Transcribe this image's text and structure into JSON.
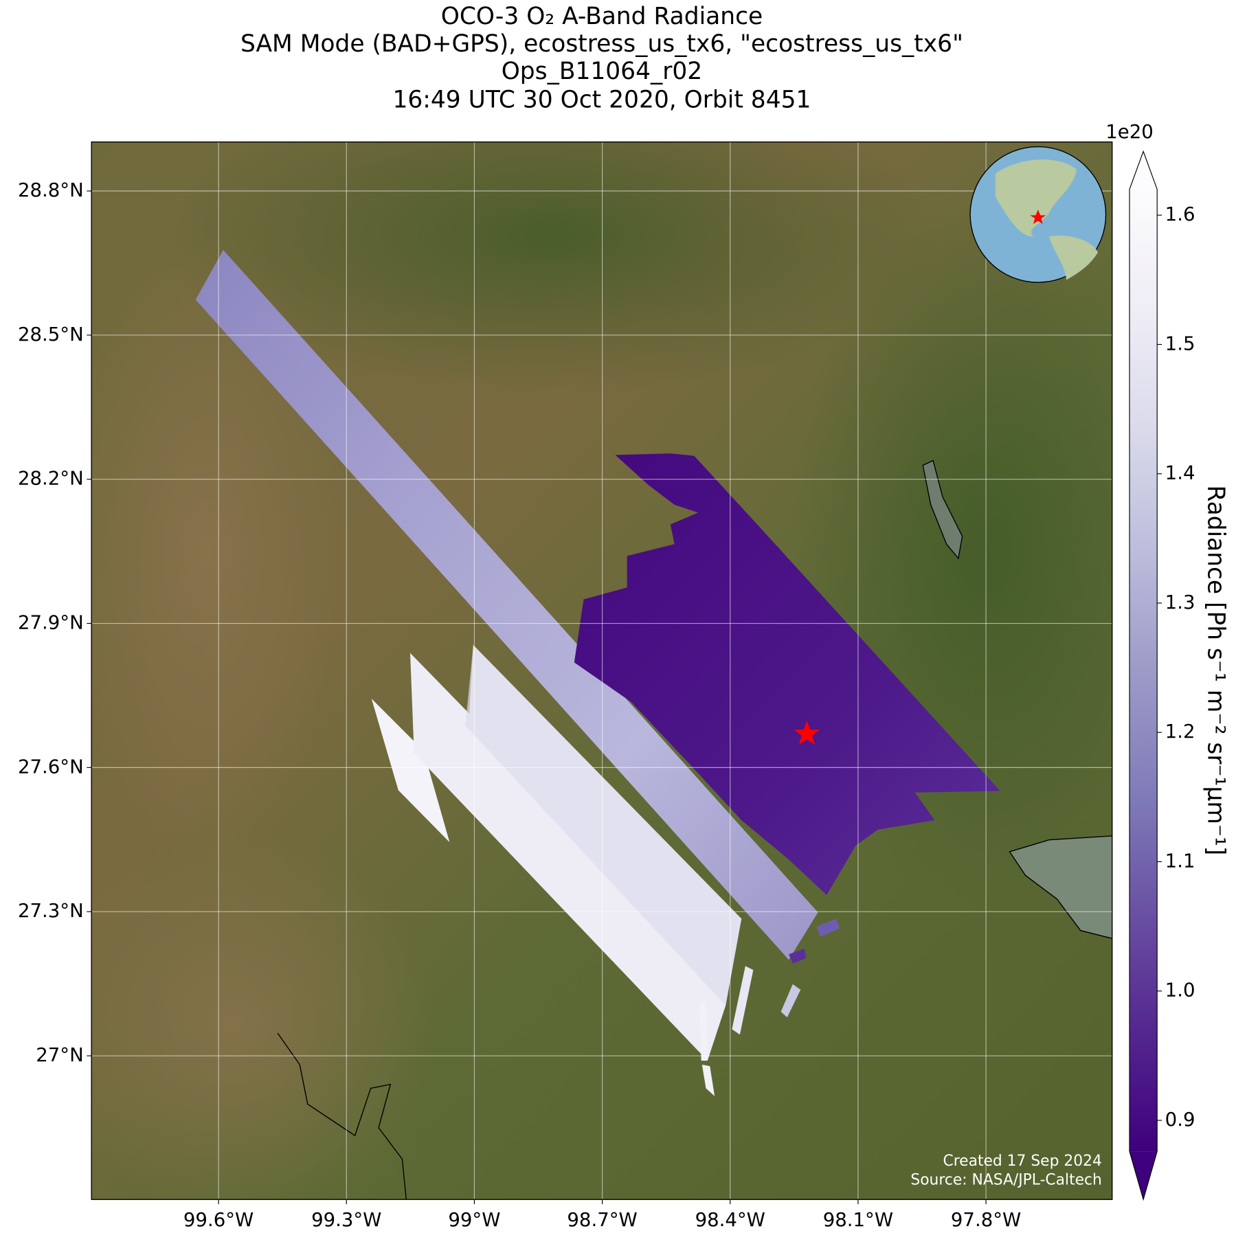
{
  "chart_data": {
    "type": "map",
    "title": [
      "OCO-3 O₂ A-Band Radiance",
      "SAM Mode (BAD+GPS), ecostress_us_tx6, \"ecostress_us_tx6\"",
      "Ops_B11064_r02",
      "16:49 UTC 30 Oct 2020, Orbit 8451"
    ],
    "xlim": [
      -99.898,
      -97.504
    ],
    "ylim": [
      26.701,
      28.902
    ],
    "xticks": [
      {
        "value": -99.6,
        "label": "99.6°W"
      },
      {
        "value": -99.3,
        "label": "99.3°W"
      },
      {
        "value": -99.0,
        "label": "99°W"
      },
      {
        "value": -98.7,
        "label": "98.7°W"
      },
      {
        "value": -98.4,
        "label": "98.4°W"
      },
      {
        "value": -98.1,
        "label": "98.1°W"
      },
      {
        "value": -97.8,
        "label": "97.8°W"
      }
    ],
    "yticks": [
      {
        "value": 28.8,
        "label": "28.8°N"
      },
      {
        "value": 28.5,
        "label": "28.5°N"
      },
      {
        "value": 28.2,
        "label": "28.2°N"
      },
      {
        "value": 27.9,
        "label": "27.9°N"
      },
      {
        "value": 27.6,
        "label": "27.6°N"
      },
      {
        "value": 27.3,
        "label": "27.3°N"
      },
      {
        "value": 27.0,
        "label": "27°N"
      }
    ],
    "grid": true,
    "target": {
      "lon": -98.22,
      "lat": 27.67,
      "color": "#ff0000"
    },
    "colorbar": {
      "label": "Radiance [Ph s⁻¹ m⁻² sr⁻¹μm⁻¹]",
      "offset_label": "1e20",
      "clim": [
        0.876,
        1.62
      ],
      "ticks": [
        0.9,
        {
          "value": 1,
          "label": "1.0"
        },
        1.1,
        1.2,
        1.3,
        1.4,
        1.5,
        1.6
      ],
      "colors": [
        "#3f007d",
        "#54278f",
        "#6a51a3",
        "#807dba",
        "#9e9ac8",
        "#bcbddc",
        "#dadaeb",
        "#efedf5",
        "#fcfbfd"
      ]
    },
    "credits": [
      "Created 17 Sep 2024",
      "Source: NASA/JPL-Caltech"
    ]
  }
}
